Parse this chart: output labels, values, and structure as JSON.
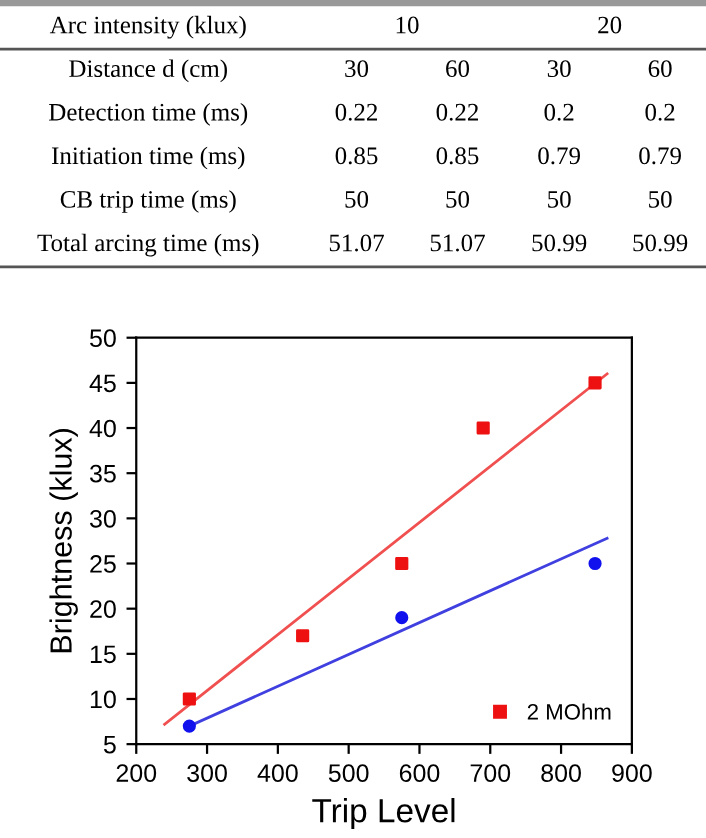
{
  "chart_data": [
    {
      "type": "other",
      "y_categories": [
        "Arc intensity (klux)",
        "Distance d (cm)",
        "Detection time (ms)",
        "Initiation time (ms)",
        "CB trip time (ms)",
        "Total arcing time (ms)"
      ],
      "cell_labels": [
        [
          "10",
          null,
          "20",
          null
        ],
        [
          "30",
          "60",
          "30",
          "60"
        ],
        [
          "0.22",
          "0.22",
          "0.2",
          "0.2"
        ],
        [
          "0.85",
          "0.85",
          "0.79",
          "0.79"
        ],
        [
          "50",
          "50",
          "50",
          "50"
        ],
        [
          "51.07",
          "51.07",
          "50.99",
          "50.99"
        ]
      ]
    },
    {
      "type": "scatter",
      "xlabel": "Trip Level",
      "ylabel": "Brightness (klux)",
      "xlim": [
        200,
        900
      ],
      "xticks": [
        200,
        300,
        400,
        500,
        600,
        700,
        800,
        900
      ],
      "ylim": [
        5,
        50
      ],
      "yticks": [
        5,
        10,
        15,
        20,
        25,
        30,
        35,
        40,
        45,
        50
      ],
      "grid": false,
      "legend": "bottom right",
      "series": [
        {
          "name": "2 MOhm",
          "color": "#ee1111",
          "marker": "square",
          "x": [
            275,
            435,
            575,
            690,
            848
          ],
          "values": [
            10,
            17,
            25,
            40,
            45
          ]
        },
        {
          "color": "#1111ee",
          "marker": "circle",
          "x": [
            275,
            575,
            848
          ],
          "values": [
            7,
            19,
            25
          ]
        },
        {
          "type": "line",
          "color": "#f05050",
          "x": [
            240,
            865
          ],
          "values": [
            7.2,
            46
          ]
        },
        {
          "type": "line",
          "color": "#4040e0",
          "x": [
            275,
            865
          ],
          "values": [
            7,
            27.8
          ]
        }
      ]
    }
  ]
}
